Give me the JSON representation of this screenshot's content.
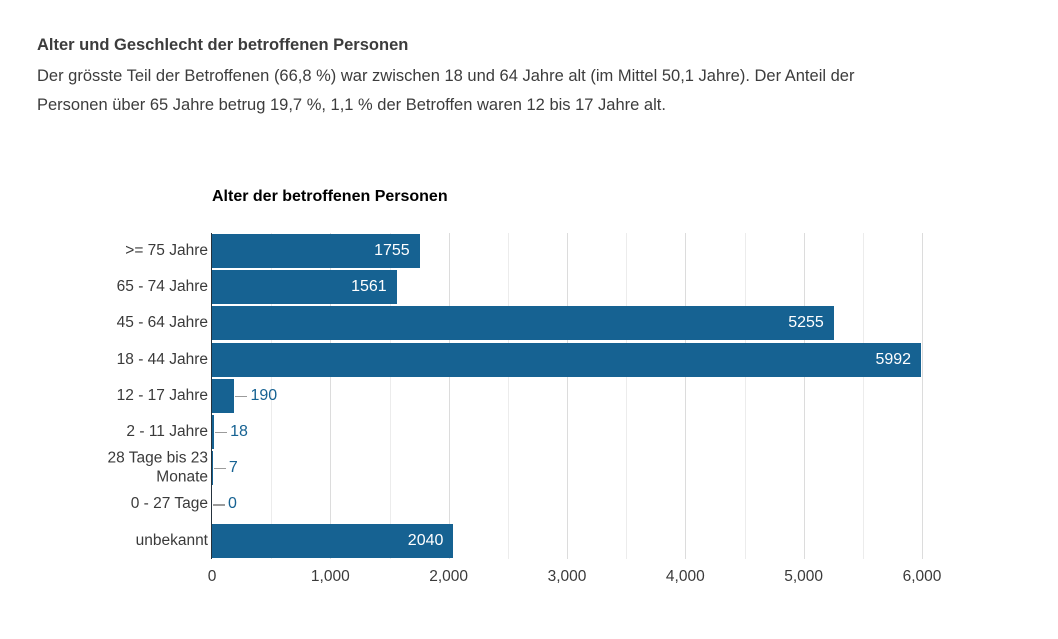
{
  "page": {
    "heading": "Alter und Geschlecht der betroffenen Personen",
    "paragraph_line1": "Der grösste Teil der Betroffenen (66,8 %) war zwischen 18 und 64 Jahre alt (im Mittel 50,1 Jahre). Der Anteil der",
    "paragraph_line2": "Personen über 65 Jahre betrug 19,7 %, 1,1 % der Betroffen waren 12 bis 17 Jahre alt."
  },
  "chart_data": {
    "type": "bar",
    "orientation": "horizontal",
    "title": "Alter der betroffenen Personen",
    "categories": [
      ">= 75 Jahre",
      "65 - 74 Jahre",
      "45 - 64 Jahre",
      "18 - 44 Jahre",
      "12 - 17 Jahre",
      "2 - 11 Jahre",
      "28 Tage bis 23 Monate",
      "0 - 27 Tage",
      "unbekannt"
    ],
    "values": [
      1755,
      1561,
      5255,
      5992,
      190,
      18,
      7,
      0,
      2040
    ],
    "xlabel": "",
    "ylabel": "",
    "xlim": [
      0,
      6000
    ],
    "xticks": [
      0,
      1000,
      2000,
      3000,
      4000,
      5000,
      6000
    ],
    "xtick_labels": [
      "0",
      "1,000",
      "2,000",
      "3,000",
      "4,000",
      "5,000",
      "6,000"
    ],
    "minor_grid_step": 500,
    "grid": true,
    "legend": "none",
    "colors": {
      "bar": "#166292",
      "value_label_inside": "#ffffff",
      "value_label_outside": "#166292",
      "axis_line": "#25323c",
      "major_gridline": "#dcdcdc",
      "minor_gridline": "#ececec",
      "leader_line": "#9b9b9b",
      "text": "#3a3a3a"
    }
  }
}
